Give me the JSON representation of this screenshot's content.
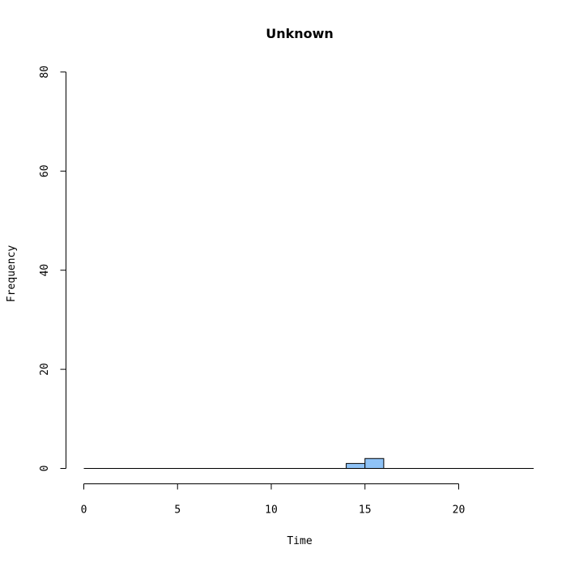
{
  "chart_data": {
    "type": "bar",
    "title": "Unknown",
    "xlabel": "Time",
    "ylabel": "Frequency",
    "xlim": [
      0,
      24
    ],
    "ylim": [
      0,
      80
    ],
    "x_ticks": [
      0,
      5,
      10,
      15,
      20
    ],
    "y_ticks": [
      0,
      20,
      40,
      60,
      80
    ],
    "bin_width": 1,
    "bins": [
      {
        "start": 0,
        "end": 1,
        "count": 0
      },
      {
        "start": 1,
        "end": 2,
        "count": 0
      },
      {
        "start": 2,
        "end": 3,
        "count": 0
      },
      {
        "start": 3,
        "end": 4,
        "count": 0
      },
      {
        "start": 4,
        "end": 5,
        "count": 0
      },
      {
        "start": 5,
        "end": 6,
        "count": 0
      },
      {
        "start": 6,
        "end": 7,
        "count": 0
      },
      {
        "start": 7,
        "end": 8,
        "count": 0
      },
      {
        "start": 8,
        "end": 9,
        "count": 0
      },
      {
        "start": 9,
        "end": 10,
        "count": 0
      },
      {
        "start": 10,
        "end": 11,
        "count": 0
      },
      {
        "start": 11,
        "end": 12,
        "count": 0
      },
      {
        "start": 12,
        "end": 13,
        "count": 0
      },
      {
        "start": 13,
        "end": 14,
        "count": 0
      },
      {
        "start": 14,
        "end": 15,
        "count": 1
      },
      {
        "start": 15,
        "end": 16,
        "count": 2
      },
      {
        "start": 16,
        "end": 17,
        "count": 0
      },
      {
        "start": 17,
        "end": 18,
        "count": 0
      },
      {
        "start": 18,
        "end": 19,
        "count": 0
      },
      {
        "start": 19,
        "end": 20,
        "count": 0
      },
      {
        "start": 20,
        "end": 21,
        "count": 0
      },
      {
        "start": 21,
        "end": 22,
        "count": 0
      },
      {
        "start": 22,
        "end": 23,
        "count": 0
      },
      {
        "start": 23,
        "end": 24,
        "count": 0
      }
    ],
    "bar_color": "#8fc3f7",
    "bar_edge_color": "#000000",
    "grid": false,
    "legend": "none"
  }
}
